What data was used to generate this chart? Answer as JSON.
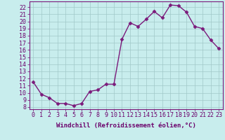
{
  "hours": [
    0,
    1,
    2,
    3,
    4,
    5,
    6,
    7,
    8,
    9,
    10,
    11,
    12,
    13,
    14,
    15,
    16,
    17,
    18,
    19,
    20,
    21,
    22,
    23
  ],
  "values": [
    11.5,
    9.8,
    9.3,
    8.5,
    8.5,
    8.2,
    8.5,
    10.2,
    10.4,
    11.2,
    11.2,
    17.5,
    19.8,
    19.3,
    20.3,
    21.4,
    20.5,
    22.3,
    22.2,
    21.3,
    19.3,
    19.0,
    17.4,
    16.2
  ],
  "line_color": "#7B1A7B",
  "marker": "D",
  "marker_size": 2.5,
  "bg_color": "#c8eded",
  "grid_color": "#a0c8c8",
  "xlabel": "Windchill (Refroidissement éolien,°C)",
  "xlabel_color": "#6B006B",
  "ylabel_ticks": [
    8,
    9,
    10,
    11,
    12,
    13,
    14,
    15,
    16,
    17,
    18,
    19,
    20,
    21,
    22
  ],
  "ylim": [
    7.7,
    22.8
  ],
  "xlim": [
    -0.5,
    23.5
  ],
  "xtick_labels": [
    "0",
    "1",
    "2",
    "3",
    "4",
    "5",
    "6",
    "7",
    "8",
    "9",
    "10",
    "11",
    "12",
    "13",
    "14",
    "15",
    "16",
    "17",
    "18",
    "19",
    "20",
    "21",
    "22",
    "23"
  ],
  "spine_color": "#7B1A7B",
  "tick_color": "#6B006B",
  "label_fontsize": 6.5,
  "tick_fontsize": 6.0,
  "linewidth": 1.0
}
